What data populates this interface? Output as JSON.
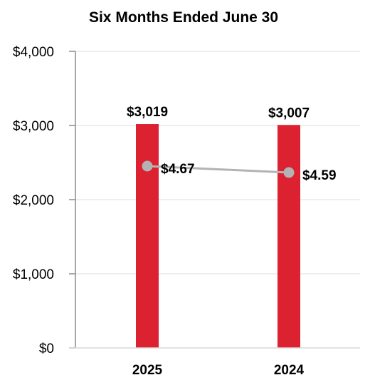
{
  "chart_data": {
    "type": "bar",
    "title": "Six Months Ended June 30",
    "categories": [
      "2025",
      "2024"
    ],
    "ylim": [
      0,
      4000
    ],
    "yticks": [
      0,
      1000,
      2000,
      3000,
      4000
    ],
    "ytick_labels": [
      "$0",
      "$1,000",
      "$2,000",
      "$3,000",
      "$4,000"
    ],
    "grid": true,
    "legend": "none",
    "series": [
      {
        "type": "bar",
        "values": [
          3019,
          3007
        ],
        "labels": [
          "$3,019",
          "$3,007"
        ],
        "color": "#dc2131"
      },
      {
        "type": "line",
        "values": [
          4.67,
          4.59
        ],
        "labels": [
          "$4.67",
          "$4.59"
        ],
        "color": "#b3b3b3",
        "secondary_axis": true
      }
    ]
  }
}
